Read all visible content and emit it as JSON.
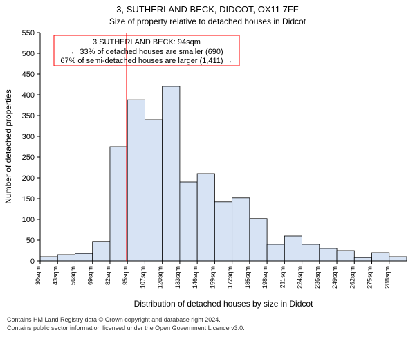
{
  "title": "3, SUTHERLAND BECK, DIDCOT, OX11 7FF",
  "subtitle": "Size of property relative to detached houses in Didcot",
  "xaxis_title": "Distribution of detached houses by size in Didcot",
  "yaxis_title": "Number of detached properties",
  "footer": {
    "line1": "Contains HM Land Registry data © Crown copyright and database right 2024.",
    "line2": "Contains public sector information licensed under the Open Government Licence v3.0."
  },
  "chart": {
    "type": "histogram",
    "bar_fill": "#d7e3f4",
    "bar_stroke": "#000000",
    "background_color": "#ffffff",
    "marker_color": "#ff0000",
    "annot_border": "#ff0000",
    "ylim": [
      0,
      550
    ],
    "ytick_step": 50,
    "x_labels": [
      "30sqm",
      "43sqm",
      "56sqm",
      "69sqm",
      "82sqm",
      "95sqm",
      "107sqm",
      "120sqm",
      "133sqm",
      "146sqm",
      "159sqm",
      "172sqm",
      "185sqm",
      "198sqm",
      "211sqm",
      "224sqm",
      "236sqm",
      "249sqm",
      "262sqm",
      "275sqm",
      "288sqm"
    ],
    "values": [
      10,
      15,
      18,
      47,
      275,
      388,
      340,
      420,
      190,
      210,
      142,
      152,
      102,
      40,
      60,
      40,
      30,
      25,
      8,
      20,
      10
    ],
    "marker_x_value": 94,
    "x_min": 30,
    "x_step": 12.9,
    "annotation": {
      "line1": "3 SUTHERLAND BECK: 94sqm",
      "line2": "← 33% of detached houses are smaller (690)",
      "line3": "67% of semi-detached houses are larger (1,411) →"
    }
  }
}
